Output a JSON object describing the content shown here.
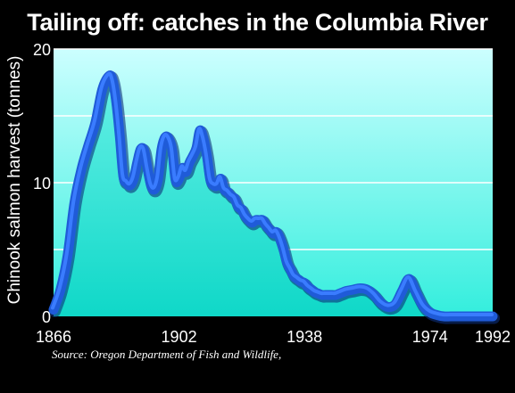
{
  "chart_data": {
    "type": "area",
    "title": "Tailing off: catches in the Columbia River",
    "xlabel": "",
    "ylabel": "Chinook salmon harvest (tonnes)",
    "xlim": [
      1866,
      1992
    ],
    "ylim": [
      0,
      20
    ],
    "x_ticks": [
      "1866",
      "1902",
      "1938",
      "1974",
      "1992"
    ],
    "y_ticks": [
      "0",
      "10",
      "20"
    ],
    "grid": true,
    "series": [
      {
        "x": [
          1866,
          1868,
          1870,
          1872,
          1874,
          1876,
          1878,
          1880,
          1882,
          1883,
          1884,
          1885,
          1886,
          1887,
          1888,
          1889,
          1890,
          1891,
          1892,
          1893,
          1894,
          1895,
          1896,
          1897,
          1898,
          1899,
          1900,
          1901,
          1902,
          1903,
          1904,
          1905,
          1906,
          1907,
          1908,
          1909,
          1910,
          1911,
          1912,
          1913,
          1914,
          1915,
          1916,
          1917,
          1918,
          1919,
          1920,
          1921,
          1922,
          1923,
          1924,
          1925,
          1926,
          1927,
          1928,
          1929,
          1930,
          1931,
          1932,
          1933,
          1934,
          1935,
          1936,
          1937,
          1938,
          1939,
          1940,
          1941,
          1942,
          1943,
          1944,
          1945,
          1946,
          1947,
          1948,
          1949,
          1950,
          1952,
          1954,
          1956,
          1958,
          1960,
          1962,
          1964,
          1966,
          1968,
          1970,
          1972,
          1974,
          1976,
          1978,
          1980,
          1982,
          1984,
          1985,
          1986,
          1987,
          1988,
          1989,
          1990,
          1991,
          1992
        ],
        "values": [
          0.5,
          2.0,
          4.5,
          8.5,
          11.0,
          12.8,
          14.5,
          17.0,
          18.0,
          17.6,
          16.0,
          13.5,
          10.5,
          10.0,
          9.8,
          10.3,
          11.5,
          12.5,
          12.4,
          11.0,
          9.8,
          9.5,
          10.3,
          12.5,
          13.4,
          13.3,
          12.5,
          10.2,
          10.3,
          11.1,
          10.8,
          11.5,
          12.0,
          12.6,
          13.9,
          13.3,
          12.0,
          10.2,
          9.8,
          9.8,
          10.3,
          9.5,
          9.3,
          9.0,
          8.8,
          8.2,
          8.0,
          7.5,
          7.2,
          7.0,
          7.2,
          7.2,
          7.2,
          6.8,
          6.5,
          6.2,
          6.3,
          5.8,
          5.0,
          4.0,
          3.5,
          3.0,
          2.8,
          2.6,
          2.5,
          2.2,
          2.0,
          1.8,
          1.7,
          1.6,
          1.6,
          1.6,
          1.6,
          1.6,
          1.7,
          1.8,
          1.9,
          2.0,
          2.1,
          2.0,
          1.6,
          1.0,
          0.7,
          0.9,
          1.9,
          2.8,
          1.8,
          0.8,
          0.3,
          0.1,
          0.0,
          0.0,
          0.0,
          0.0,
          0.0,
          0.0,
          0.0,
          0.0,
          0.0,
          0.0,
          0.0,
          0.0
        ]
      }
    ],
    "colors": {
      "background": "#000000",
      "plot_top": "#ccffff",
      "plot_bottom": "#33eedd",
      "area_top": "#66f0e6",
      "area_bottom": "#0fd8c8",
      "line": "#1f5bd8",
      "line_highlight": "#3a7cff",
      "grid": "#ffffff",
      "text": "#ffffff"
    }
  },
  "source_note": "Source: Oregon Department of Fish and Wildlife,"
}
